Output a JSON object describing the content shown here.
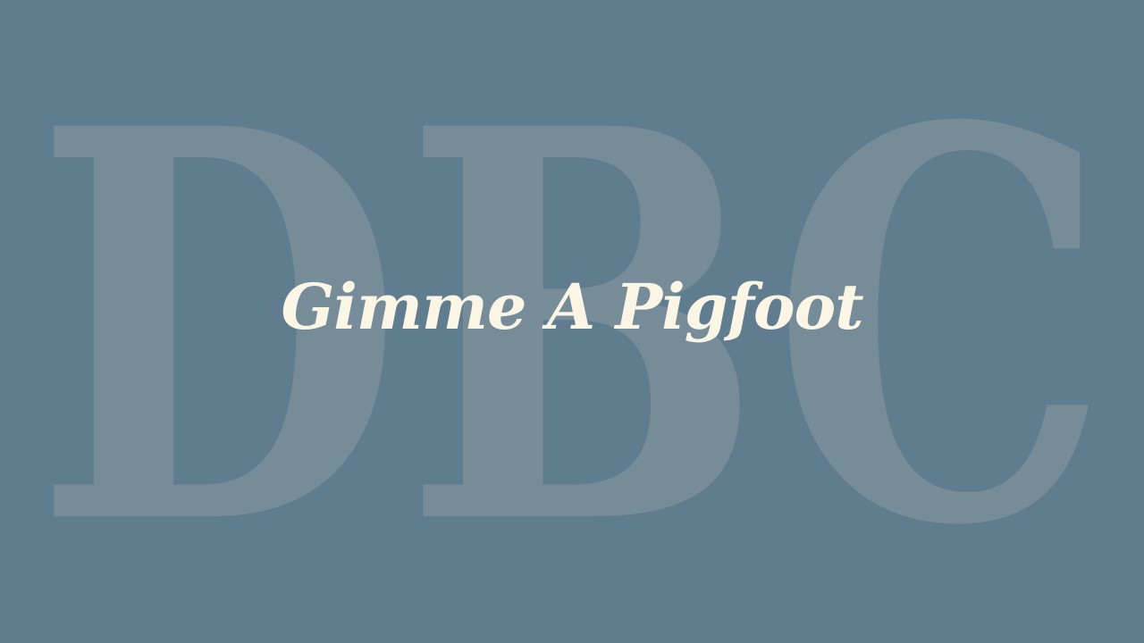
{
  "background": {
    "color": "#5f7d8e",
    "watermark_text": "DBC",
    "watermark_color": "#768c98"
  },
  "title": {
    "text": "Gimme A Pigfoot",
    "color": "#fbf5e6"
  }
}
